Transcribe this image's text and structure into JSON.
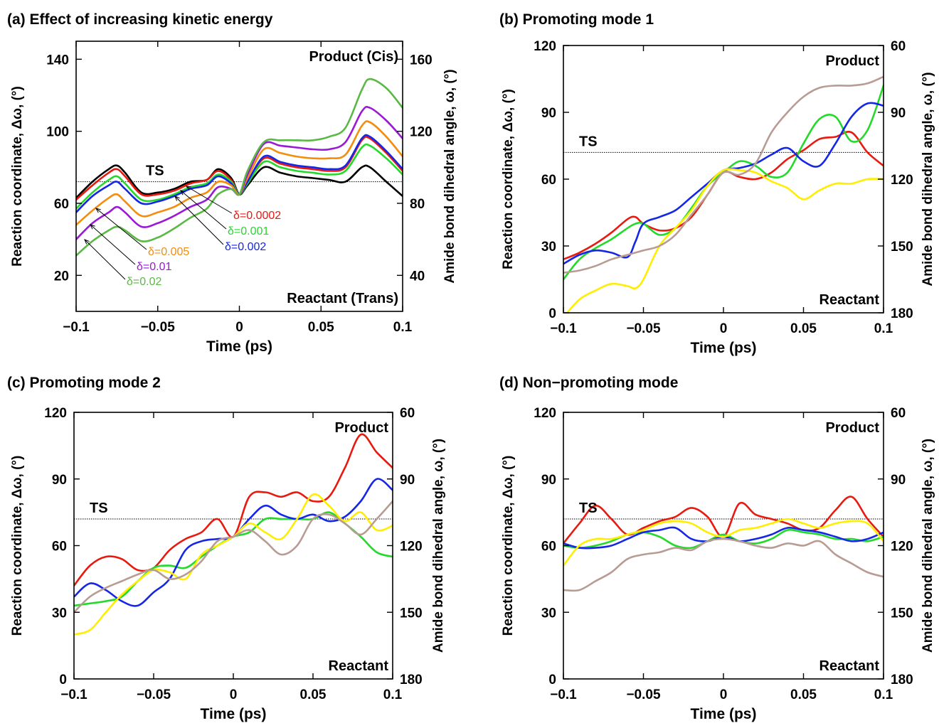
{
  "figure": {
    "panels": [
      {
        "id": "a",
        "title": "(a) Effect of increasing kinetic energy",
        "left_axis": {
          "label": "Reaction coordinate, Δω, (°)",
          "range": [
            0,
            150
          ],
          "ticks": [
            "20",
            "60",
            "100",
            "140"
          ]
        },
        "right_axis": {
          "label": "Amide bond dihedral angle, ω, (°)",
          "ticks": [
            "40",
            "80",
            "120",
            "160"
          ]
        },
        "x_axis": {
          "label": "Time (ps)",
          "range": [
            -0.1,
            0.1
          ],
          "ticks": [
            "−0.1",
            "−0.05",
            "0",
            "0.05",
            "0.1"
          ]
        },
        "ts_label": "TS",
        "product_label": "Product (Cis)",
        "reactant_label": "Reactant (Trans)",
        "delta_labels": [
          {
            "text": "δ=0.0002",
            "color": "#e8190f"
          },
          {
            "text": "δ=0.001",
            "color": "#23d92a"
          },
          {
            "text": "δ=0.002",
            "color": "#1426e6"
          },
          {
            "text": "δ=0.005",
            "color": "#f48c0c"
          },
          {
            "text": "δ=0.01",
            "color": "#9b19d4"
          },
          {
            "text": "δ=0.02",
            "color": "#59b944"
          }
        ]
      },
      {
        "id": "b",
        "title": "(b) Promoting mode 1",
        "left_axis": {
          "label": "Reaction coordinate, Δω, (°)",
          "range": [
            0,
            120
          ],
          "ticks": [
            "0",
            "30",
            "60",
            "90",
            "120"
          ]
        },
        "right_axis": {
          "label": "Amide bond dihedral angle, ω, (°)",
          "ticks": [
            "180",
            "150",
            "120",
            "90",
            "60"
          ]
        },
        "x_axis": {
          "label": "Time (ps)",
          "range": [
            -0.1,
            0.1
          ],
          "ticks": [
            "−0.1",
            "−0.05",
            "0",
            "0.05",
            "0.1"
          ]
        },
        "ts_label": "TS",
        "product_label": "Product",
        "reactant_label": "Reactant"
      },
      {
        "id": "c",
        "title": "(c) Promoting mode 2",
        "left_axis": {
          "label": "Reaction coordinate, Δω, (°)",
          "range": [
            0,
            120
          ],
          "ticks": [
            "0",
            "30",
            "60",
            "90",
            "120"
          ]
        },
        "right_axis": {
          "label": "Amide bond dihedral angle, ω, (°)",
          "ticks": [
            "180",
            "150",
            "120",
            "90",
            "60"
          ]
        },
        "x_axis": {
          "label": "Time (ps)",
          "range": [
            -0.1,
            0.1
          ],
          "ticks": [
            "−0.1",
            "−0.05",
            "0",
            "0.05",
            "0.1"
          ]
        },
        "ts_label": "TS",
        "product_label": "Product",
        "reactant_label": "Reactant"
      },
      {
        "id": "d",
        "title": "(d) Non−promoting mode",
        "left_axis": {
          "label": "Reaction coordinate, Δω, (°)",
          "range": [
            0,
            120
          ],
          "ticks": [
            "0",
            "30",
            "60",
            "90",
            "120"
          ]
        },
        "right_axis": {
          "label": "Amide bond dihedral angle, ω, (°)",
          "ticks": [
            "180",
            "150",
            "120",
            "90",
            "60"
          ]
        },
        "x_axis": {
          "label": "Time (ps)",
          "range": [
            -0.1,
            0.1
          ],
          "ticks": [
            "−0.1",
            "−0.05",
            "0",
            "0.05",
            "0.1"
          ]
        },
        "ts_label": "TS",
        "product_label": "Product",
        "reactant_label": "Reactant"
      }
    ]
  },
  "chart_data": [
    {
      "panel": "a",
      "type": "line",
      "title": "(a) Effect of increasing kinetic energy",
      "xlabel": "Time (ps)",
      "ylabel": "Reaction coordinate, Δω, (°)",
      "y2label": "Amide bond dihedral angle, ω, (°)",
      "xlim": [
        -0.1,
        0.1
      ],
      "ylim": [
        0,
        150
      ],
      "ts_value": 72,
      "grid": false,
      "x": [
        -0.1,
        -0.09,
        -0.08,
        -0.075,
        -0.07,
        -0.06,
        -0.05,
        -0.04,
        -0.03,
        -0.02,
        -0.013,
        -0.005,
        0,
        0.005,
        0.015,
        0.025,
        0.035,
        0.045,
        0.055,
        0.065,
        0.075,
        0.08,
        0.09,
        0.1
      ],
      "series": [
        {
          "color": "#000000",
          "values": [
            63,
            72,
            79,
            81,
            77,
            66,
            66,
            68,
            72,
            73,
            79,
            74,
            65,
            70,
            80,
            77,
            75,
            74,
            73,
            72,
            80,
            80,
            72,
            64
          ]
        },
        {
          "color": "#e8190f",
          "values": [
            62,
            70,
            77,
            79,
            75,
            65,
            65,
            67,
            71,
            73,
            78,
            73,
            65,
            72,
            85,
            82,
            80,
            79,
            78,
            80,
            95,
            96,
            88,
            78
          ]
        },
        {
          "color": "#23d92a",
          "values": [
            57,
            66,
            73,
            75,
            71,
            62,
            62,
            65,
            69,
            71,
            76,
            72,
            65,
            71,
            83,
            80,
            78,
            77,
            76,
            78,
            91,
            92,
            85,
            76
          ]
        },
        {
          "color": "#1426e6",
          "values": [
            55,
            64,
            70,
            72,
            68,
            60,
            61,
            64,
            68,
            70,
            75,
            71,
            65,
            72,
            86,
            83,
            81,
            80,
            79,
            81,
            96,
            97,
            89,
            79
          ]
        },
        {
          "color": "#f48c0c",
          "values": [
            48,
            56,
            63,
            65,
            61,
            53,
            55,
            58,
            63,
            66,
            72,
            70,
            65,
            74,
            90,
            88,
            86,
            85,
            85,
            87,
            103,
            105,
            97,
            86
          ]
        },
        {
          "color": "#9b19d4",
          "values": [
            40,
            49,
            55,
            58,
            55,
            47,
            49,
            53,
            58,
            62,
            69,
            68,
            65,
            76,
            93,
            92,
            91,
            90,
            90,
            94,
            111,
            113,
            106,
            96
          ]
        },
        {
          "color": "#59b944",
          "values": [
            31,
            39,
            45,
            47,
            45,
            39,
            41,
            46,
            52,
            57,
            65,
            68,
            65,
            78,
            94,
            95,
            95,
            95,
            97,
            102,
            123,
            129,
            124,
            113
          ]
        }
      ]
    },
    {
      "panel": "b",
      "type": "line",
      "title": "(b) Promoting mode 1",
      "xlabel": "Time (ps)",
      "ylabel": "Reaction coordinate, Δω, (°)",
      "y2label": "Amide bond dihedral angle, ω, (°)",
      "xlim": [
        -0.1,
        0.1
      ],
      "ylim": [
        0,
        120
      ],
      "ts_value": 72,
      "grid": false,
      "x": [
        -0.1,
        -0.09,
        -0.08,
        -0.07,
        -0.06,
        -0.055,
        -0.05,
        -0.04,
        -0.03,
        -0.02,
        -0.01,
        0,
        0.01,
        0.02,
        0.03,
        0.04,
        0.05,
        0.06,
        0.07,
        0.08,
        0.09,
        0.1
      ],
      "series": [
        {
          "color": "#e8190f",
          "values": [
            24,
            27,
            31,
            36,
            42,
            43,
            40,
            37,
            38,
            43,
            53,
            63,
            61,
            60,
            63,
            69,
            73,
            78,
            79,
            81,
            72,
            66
          ]
        },
        {
          "color": "#23d92a",
          "values": [
            15,
            24,
            29,
            33,
            38,
            40,
            40,
            35,
            38,
            47,
            57,
            63,
            68,
            66,
            61,
            63,
            76,
            87,
            88,
            77,
            82,
            102
          ]
        },
        {
          "color": "#1426e6",
          "values": [
            22,
            26,
            28,
            27,
            25,
            32,
            40,
            43,
            46,
            52,
            58,
            64,
            65,
            67,
            71,
            74,
            68,
            66,
            76,
            88,
            94,
            93
          ]
        },
        {
          "color": "#ffee00",
          "values": [
            -2,
            6,
            10,
            13,
            12,
            11,
            15,
            30,
            38,
            46,
            57,
            64,
            64,
            63,
            59,
            56,
            51,
            55,
            58,
            58,
            60,
            60
          ]
        },
        {
          "color": "#b89c93",
          "values": [
            18,
            19,
            21,
            24,
            26,
            27,
            28,
            30,
            35,
            44,
            53,
            63,
            62,
            67,
            81,
            90,
            97,
            101,
            102,
            102,
            103,
            106
          ]
        }
      ]
    },
    {
      "panel": "c",
      "type": "line",
      "title": "(c) Promoting mode 2",
      "xlabel": "Time (ps)",
      "ylabel": "Reaction coordinate, Δω, (°)",
      "y2label": "Amide bond dihedral angle, ω, (°)",
      "xlim": [
        -0.1,
        0.1
      ],
      "ylim": [
        0,
        120
      ],
      "ts_value": 72,
      "grid": false,
      "x": [
        -0.1,
        -0.09,
        -0.08,
        -0.07,
        -0.06,
        -0.05,
        -0.04,
        -0.03,
        -0.02,
        -0.01,
        0,
        0.01,
        0.02,
        0.03,
        0.04,
        0.05,
        0.06,
        0.07,
        0.08,
        0.09,
        0.1
      ],
      "series": [
        {
          "color": "#e8190f",
          "values": [
            42,
            51,
            55,
            54,
            49,
            50,
            58,
            63,
            66,
            72,
            64,
            82,
            84,
            82,
            84,
            80,
            82,
            95,
            110,
            102,
            95
          ]
        },
        {
          "color": "#23d92a",
          "values": [
            33,
            34,
            35,
            37,
            44,
            50,
            51,
            50,
            55,
            60,
            64,
            66,
            72,
            72,
            72,
            72,
            75,
            70,
            64,
            57,
            55
          ]
        },
        {
          "color": "#1426e6",
          "values": [
            37,
            43,
            40,
            35,
            33,
            39,
            45,
            58,
            62,
            63,
            64,
            72,
            78,
            74,
            72,
            74,
            71,
            73,
            80,
            90,
            85
          ]
        },
        {
          "color": "#ffee00",
          "values": [
            20,
            22,
            30,
            38,
            44,
            49,
            48,
            45,
            56,
            60,
            64,
            70,
            66,
            63,
            72,
            83,
            78,
            71,
            75,
            67,
            69
          ]
        },
        {
          "color": "#b89c93",
          "values": [
            30,
            37,
            41,
            44,
            47,
            49,
            45,
            47,
            53,
            62,
            64,
            67,
            62,
            56,
            60,
            72,
            74,
            70,
            65,
            72,
            80
          ]
        }
      ]
    },
    {
      "panel": "d",
      "type": "line",
      "title": "(d) Non−promoting mode",
      "xlabel": "Time (ps)",
      "ylabel": "Reaction coordinate, Δω, (°)",
      "y2label": "Amide bond dihedral angle, ω, (°)",
      "xlim": [
        -0.1,
        0.1
      ],
      "ylim": [
        0,
        120
      ],
      "ts_value": 72,
      "grid": false,
      "x": [
        -0.1,
        -0.09,
        -0.08,
        -0.07,
        -0.06,
        -0.05,
        -0.04,
        -0.03,
        -0.02,
        -0.01,
        0,
        0.01,
        0.02,
        0.03,
        0.04,
        0.05,
        0.06,
        0.07,
        0.08,
        0.09,
        0.1
      ],
      "series": [
        {
          "color": "#e8190f",
          "values": [
            61,
            70,
            78,
            72,
            65,
            68,
            71,
            73,
            77,
            73,
            64,
            79,
            74,
            72,
            70,
            67,
            68,
            76,
            82,
            72,
            64
          ]
        },
        {
          "color": "#23d92a",
          "values": [
            60,
            59,
            60,
            62,
            65,
            66,
            64,
            60,
            59,
            62,
            65,
            62,
            61,
            63,
            67,
            66,
            65,
            63,
            63,
            62,
            64
          ]
        },
        {
          "color": "#1426e6",
          "values": [
            61,
            59,
            59,
            60,
            63,
            66,
            67,
            68,
            63,
            62,
            64,
            62,
            63,
            65,
            68,
            67,
            66,
            64,
            62,
            63,
            66
          ]
        },
        {
          "color": "#ffee00",
          "values": [
            51,
            60,
            63,
            63,
            65,
            67,
            70,
            71,
            70,
            66,
            64,
            67,
            68,
            70,
            72,
            70,
            68,
            70,
            71,
            70,
            62
          ]
        },
        {
          "color": "#b89c93",
          "values": [
            40,
            40,
            44,
            48,
            54,
            56,
            57,
            59,
            58,
            62,
            63,
            62,
            60,
            59,
            61,
            60,
            62,
            56,
            52,
            48,
            46
          ]
        }
      ]
    }
  ]
}
